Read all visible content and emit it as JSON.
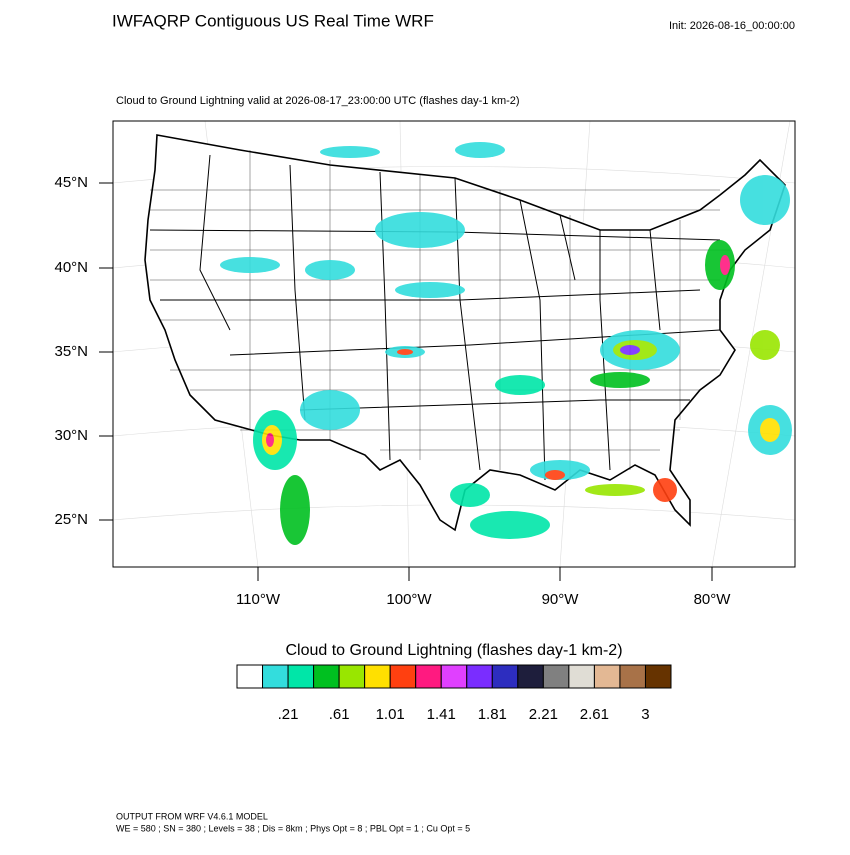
{
  "header": {
    "title": "IWFAQRP Contiguous US Real Time WRF",
    "init": "Init: 2026-08-16_00:00:00"
  },
  "map": {
    "subtitle": "Cloud to Ground Lightning valid at 2026-08-17_23:00:00 UTC   (flashes day-1 km-2)",
    "lat_labels": [
      "45°N",
      "40°N",
      "35°N",
      "30°N",
      "25°N"
    ],
    "lon_labels": [
      "110°W",
      "100°W",
      "90°W",
      "80°W"
    ]
  },
  "colorbar": {
    "title": "Cloud to Ground Lightning  (flashes day-1 km-2)",
    "colors": [
      "#ffffff",
      "#33dddd",
      "#00e6a8",
      "#00c020",
      "#99e600",
      "#ffe000",
      "#ff4010",
      "#ff1a80",
      "#e040ff",
      "#7a2dff",
      "#2d2dbf",
      "#1e1e3c",
      "#808080",
      "#e0ddd5",
      "#e3b894",
      "#a87248",
      "#663300"
    ],
    "labels": [
      ".21",
      ".61",
      "1.01",
      "1.41",
      "1.81",
      "2.21",
      "2.61",
      "3"
    ]
  },
  "footer": {
    "line1": "OUTPUT FROM WRF V4.6.1 MODEL",
    "line2": "WE = 580 ; SN = 380 ; Levels = 38 ; Dis = 8km ; Phys Opt = 8 ; PBL Opt = 1 ; Cu Opt = 5"
  }
}
